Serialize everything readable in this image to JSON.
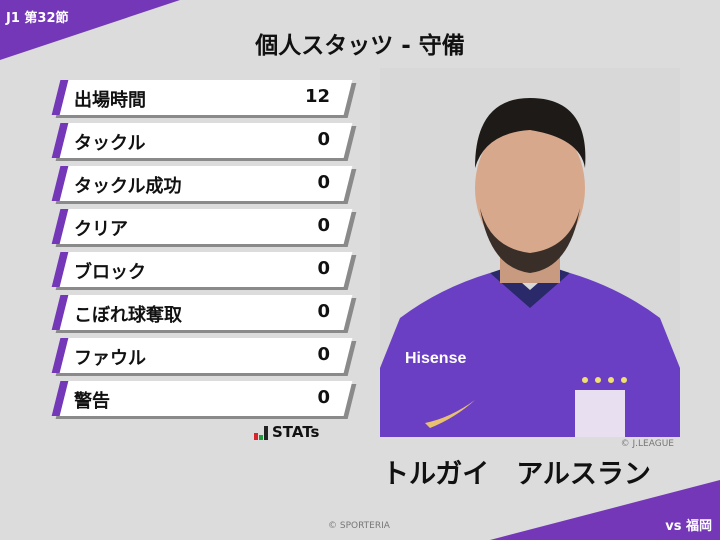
{
  "header": {
    "round": "J1 第32節",
    "title": "個人スタッツ - 守備",
    "opponent": "vs 福岡"
  },
  "stats": [
    {
      "label": "出場時間",
      "value": "12"
    },
    {
      "label": "タックル",
      "value": "0"
    },
    {
      "label": "タックル成功",
      "value": "0"
    },
    {
      "label": "クリア",
      "value": "0"
    },
    {
      "label": "ブロック",
      "value": "0"
    },
    {
      "label": "こぼれ球奪取",
      "value": "0"
    },
    {
      "label": "ファウル",
      "value": "0"
    },
    {
      "label": "警告",
      "value": "0"
    }
  ],
  "stats_logo": "STATs",
  "player": {
    "name": "トルガイ　アルスラン",
    "photo_credit": "© J.LEAGUE",
    "shirt_sponsor": "Hisense"
  },
  "footer": {
    "copyright": "© SPORTERIA"
  },
  "colors": {
    "accent": "#7437b8",
    "background": "#dcdcdc"
  }
}
